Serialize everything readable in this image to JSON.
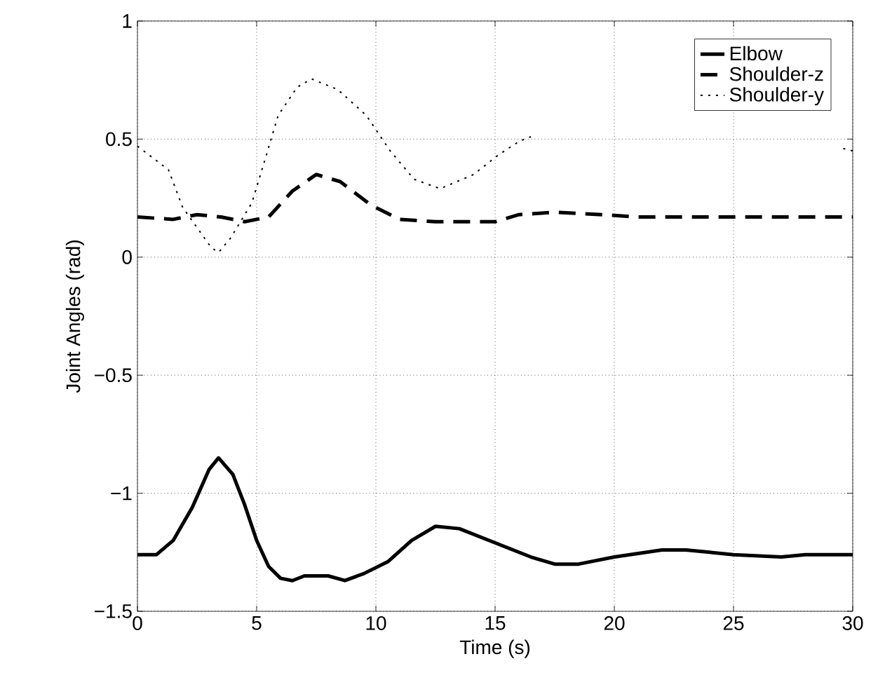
{
  "chart_data": {
    "type": "line",
    "xlabel": "Time (s)",
    "ylabel": "Joint Angles (rad)",
    "xlim": [
      0,
      30
    ],
    "xticks": [
      0,
      5,
      10,
      15,
      20,
      25,
      30
    ],
    "ylim": [
      -1.5,
      1
    ],
    "yticks": [
      {
        "value": -1.5,
        "label": "−1.5"
      },
      {
        "value": -1,
        "label": "−1"
      },
      {
        "value": -0.5,
        "label": "−0.5"
      },
      0,
      0.5,
      1
    ],
    "grid": true,
    "legend": "top right",
    "series": [
      {
        "name": "Elbow",
        "color": "#000000",
        "line_style": "solid",
        "x": [
          0,
          0.8,
          1.5,
          2.3,
          3,
          3.4,
          4,
          4.5,
          5,
          5.5,
          6,
          6.5,
          7,
          8,
          8.7,
          9.5,
          10.5,
          11.5,
          12.5,
          13.5,
          15,
          16.5,
          17.5,
          18.5,
          20,
          22,
          23,
          24,
          25,
          27,
          28,
          30
        ],
        "values": [
          -1.26,
          -1.26,
          -1.2,
          -1.06,
          -0.9,
          -0.85,
          -0.92,
          -1.05,
          -1.2,
          -1.31,
          -1.36,
          -1.37,
          -1.35,
          -1.35,
          -1.37,
          -1.34,
          -1.29,
          -1.2,
          -1.14,
          -1.15,
          -1.21,
          -1.27,
          -1.3,
          -1.3,
          -1.27,
          -1.24,
          -1.24,
          -1.25,
          -1.26,
          -1.27,
          -1.26,
          -1.26
        ]
      },
      {
        "name": "Shoulder-z",
        "color": "#000000",
        "line_style": "dashed",
        "x": [
          0,
          1.5,
          2.5,
          3.5,
          4.5,
          5.5,
          6.5,
          7.5,
          8.5,
          9.8,
          11,
          12.5,
          15,
          16,
          17.5,
          19.5,
          21,
          30
        ],
        "values": [
          0.17,
          0.16,
          0.18,
          0.17,
          0.15,
          0.17,
          0.28,
          0.35,
          0.32,
          0.22,
          0.16,
          0.15,
          0.15,
          0.18,
          0.19,
          0.18,
          0.17,
          0.17
        ]
      },
      {
        "name": "Shoulder-y",
        "color": "#000000",
        "line_style": "dotted",
        "x": [
          0,
          1.3,
          1.9,
          3.1,
          3.4,
          3.9,
          4.8,
          5.4,
          5.9,
          6.7,
          7.3,
          8.4,
          9.6,
          10.6,
          11.6,
          12.7,
          14.1,
          15.1,
          16,
          16.5,
          20,
          29.6,
          30
        ],
        "values": [
          0.47,
          0.37,
          0.21,
          0.04,
          0.02,
          0.08,
          0.23,
          0.43,
          0.6,
          0.72,
          0.755,
          0.71,
          0.6,
          0.45,
          0.33,
          0.29,
          0.35,
          0.43,
          0.49,
          0.51,
          null,
          0.46,
          0.45
        ]
      }
    ]
  }
}
